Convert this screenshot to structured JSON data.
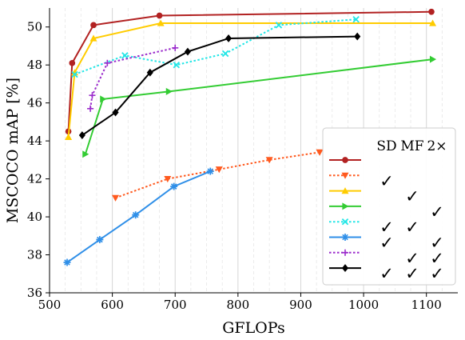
{
  "chart_data": {
    "type": "line",
    "xlabel": "GFLOPs",
    "ylabel": "MSCOCO mAP [%]",
    "xlim": [
      500,
      1150
    ],
    "ylim": [
      36,
      51
    ],
    "x_ticks": [
      500,
      600,
      700,
      800,
      900,
      1000,
      1100
    ],
    "y_ticks": [
      36,
      38,
      40,
      42,
      44,
      46,
      48,
      50
    ],
    "grid": "vertical dashed minor lines and solid major lines",
    "legend": {
      "placement": "lower-right",
      "columns": [
        "SD",
        "MF",
        "2×"
      ],
      "check_symbol": "✓"
    },
    "series": [
      {
        "color": "#b22222",
        "style": "solid",
        "marker": "circle",
        "flags": [
          false,
          false,
          false
        ],
        "points": [
          [
            530,
            44.5
          ],
          [
            536,
            48.1
          ],
          [
            570,
            50.1
          ],
          [
            675,
            50.6
          ],
          [
            1108,
            50.8
          ]
        ]
      },
      {
        "color": "#ff5a1f",
        "style": "dotted",
        "marker": "triangle-down",
        "flags": [
          true,
          false,
          false
        ],
        "points": [
          [
            605,
            41.0
          ],
          [
            688,
            42.0
          ],
          [
            770,
            42.5
          ],
          [
            850,
            43.0
          ],
          [
            930,
            43.4
          ]
        ]
      },
      {
        "color": "#ffcc00",
        "style": "solid",
        "marker": "triangle-up",
        "flags": [
          false,
          true,
          false
        ],
        "points": [
          [
            530,
            44.2
          ],
          [
            540,
            47.6
          ],
          [
            570,
            49.4
          ],
          [
            677,
            50.2
          ],
          [
            1110,
            50.2
          ]
        ]
      },
      {
        "color": "#33cc33",
        "style": "solid",
        "marker": "triangle-right",
        "flags": [
          false,
          false,
          true
        ],
        "points": [
          [
            557,
            43.3
          ],
          [
            585,
            46.2
          ],
          [
            690,
            46.6
          ],
          [
            1110,
            48.3
          ]
        ]
      },
      {
        "color": "#22e6e6",
        "style": "dotted",
        "marker": "x",
        "flags": [
          true,
          true,
          false
        ],
        "points": [
          [
            540,
            47.5
          ],
          [
            620,
            48.5
          ],
          [
            702,
            48.0
          ],
          [
            780,
            48.6
          ],
          [
            865,
            50.1
          ],
          [
            988,
            50.4
          ]
        ]
      },
      {
        "color": "#2f8fe8",
        "style": "solid",
        "marker": "star",
        "flags": [
          true,
          false,
          true
        ],
        "points": [
          [
            528,
            37.6
          ],
          [
            580,
            38.8
          ],
          [
            637,
            40.1
          ],
          [
            698,
            41.6
          ],
          [
            756,
            42.4
          ]
        ]
      },
      {
        "color": "#9b2ccc",
        "style": "dotted",
        "marker": "plus",
        "flags": [
          false,
          true,
          true
        ],
        "points": [
          [
            565,
            45.7
          ],
          [
            568,
            46.4
          ],
          [
            592,
            48.1
          ],
          [
            700,
            48.9
          ]
        ]
      },
      {
        "color": "#000000",
        "style": "solid",
        "marker": "diamond",
        "flags": [
          true,
          true,
          true
        ],
        "points": [
          [
            552,
            44.3
          ],
          [
            605,
            45.5
          ],
          [
            660,
            47.6
          ],
          [
            720,
            48.7
          ],
          [
            785,
            49.4
          ],
          [
            990,
            49.5
          ]
        ]
      }
    ]
  }
}
